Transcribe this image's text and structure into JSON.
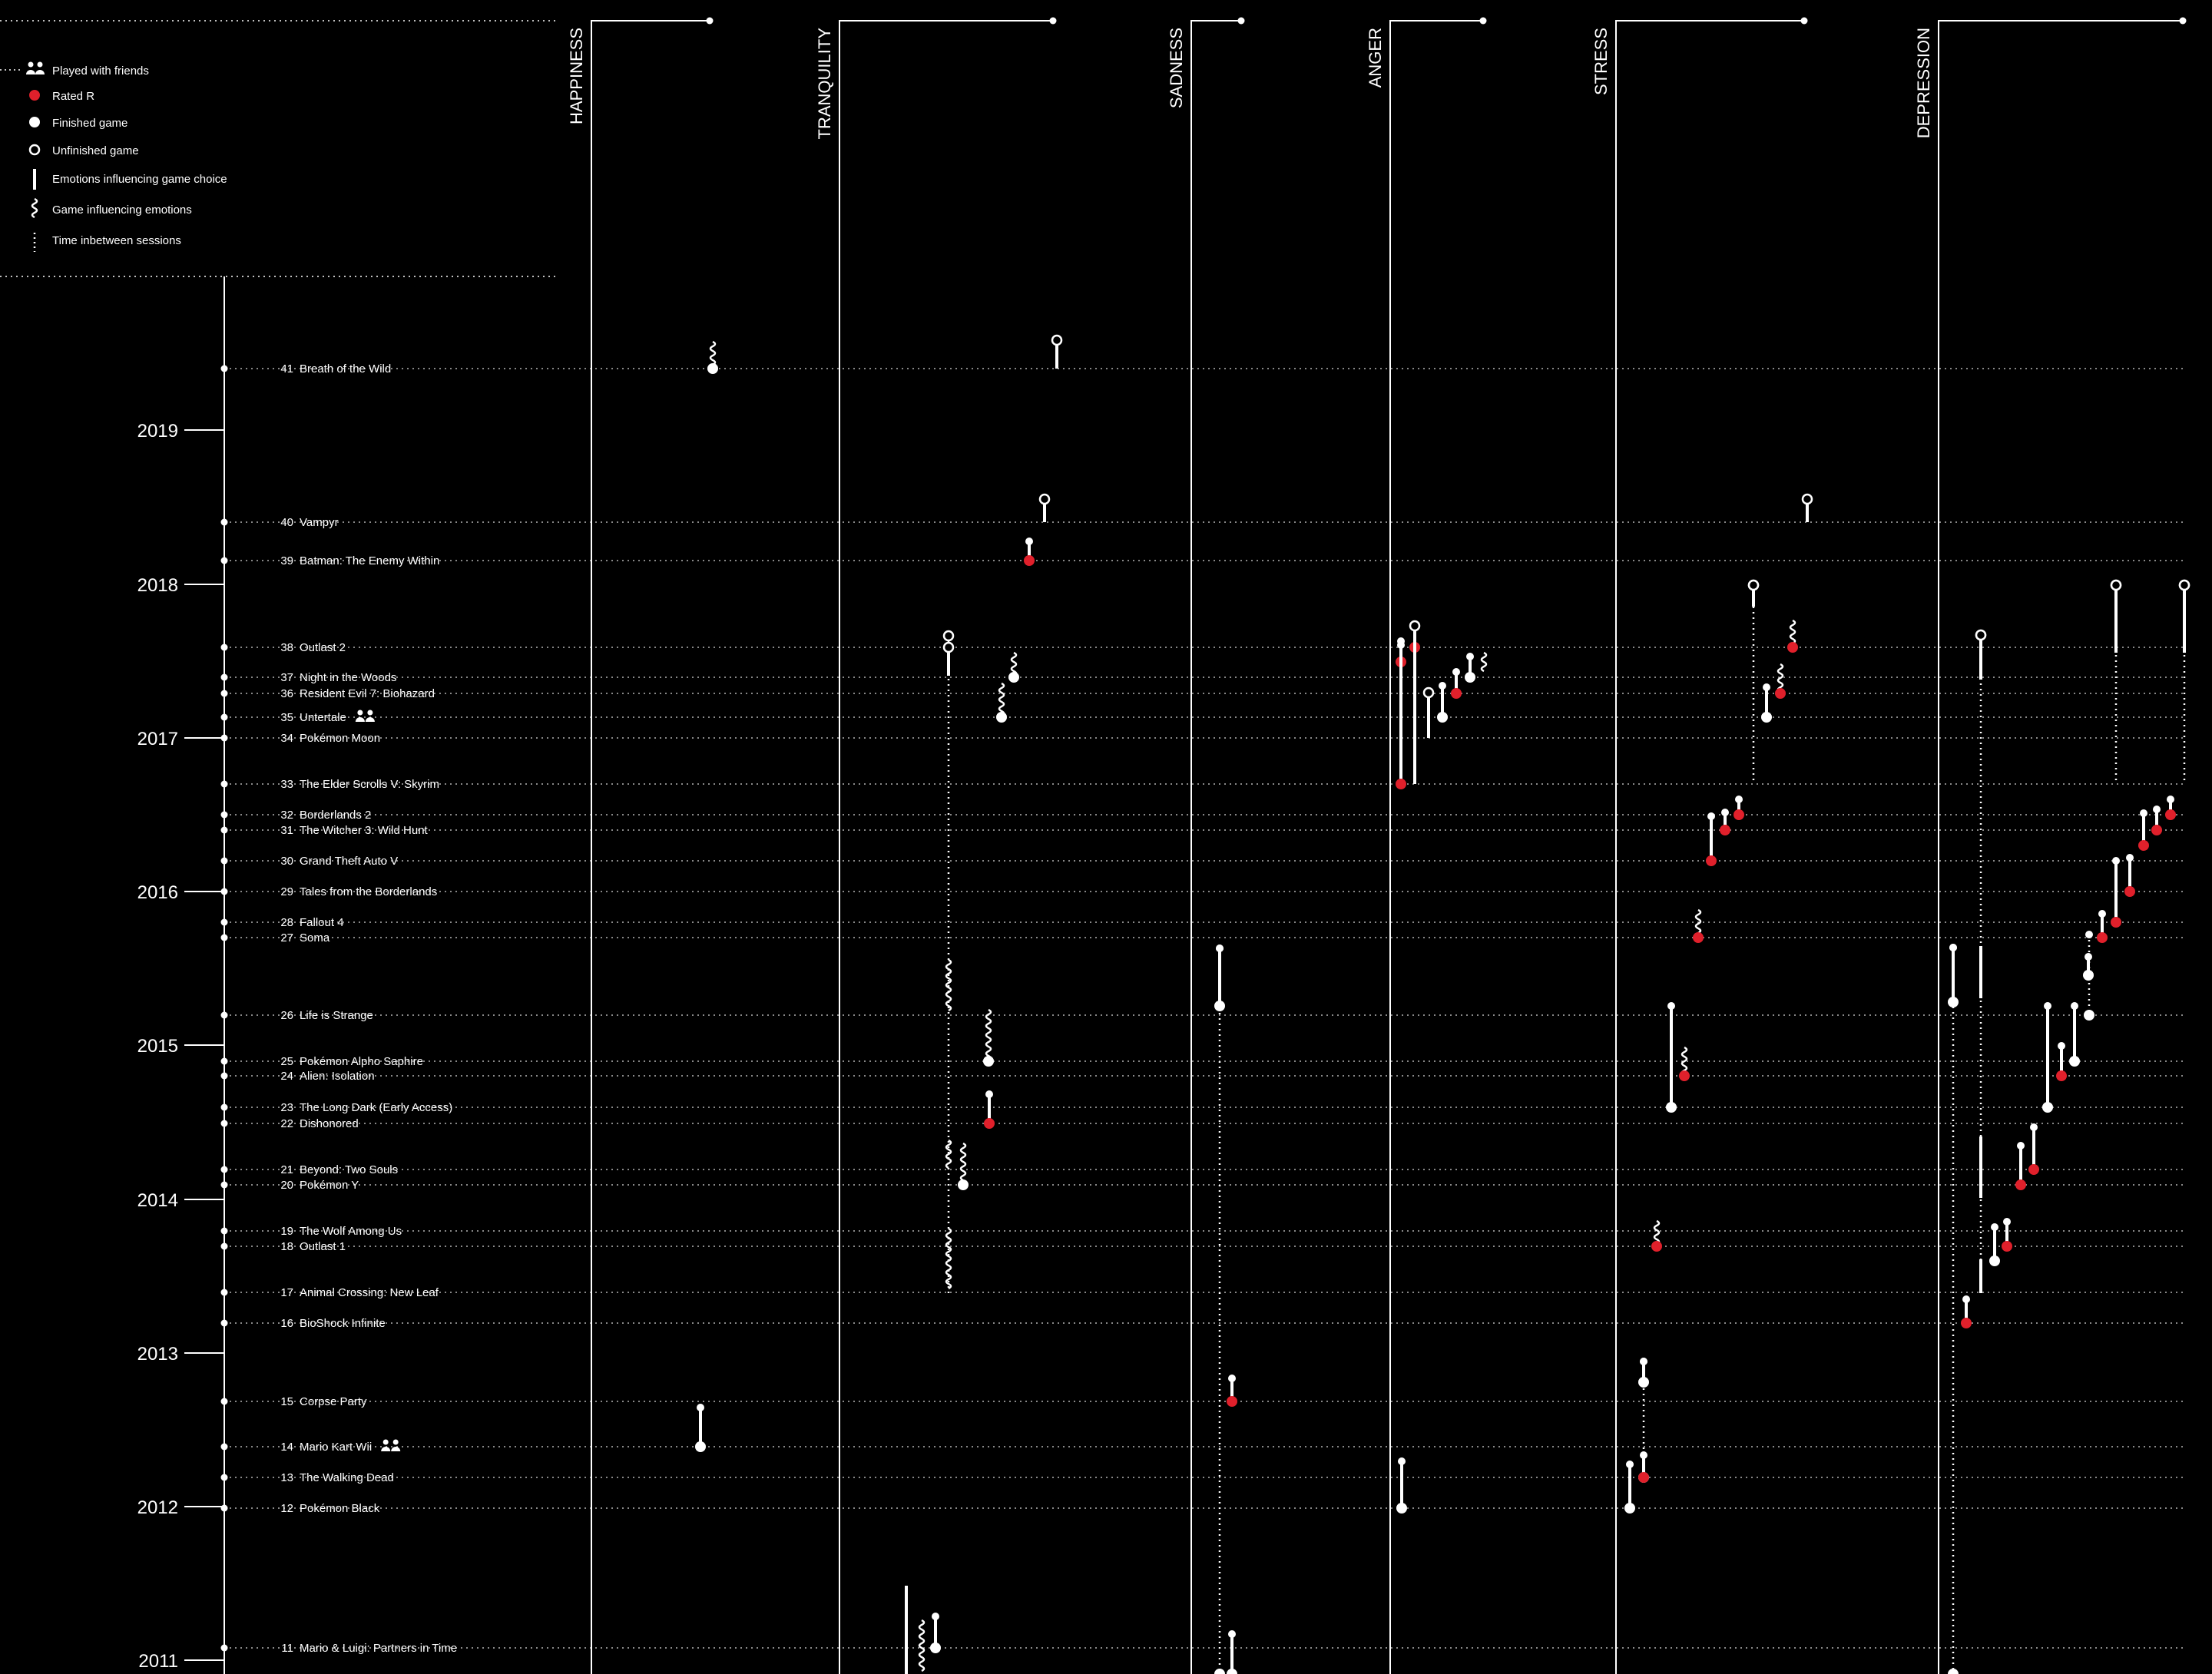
{
  "colors": {
    "background": "#000000",
    "ink": "#ffffff",
    "rated_r": "#e0202b"
  },
  "legend": [
    {
      "icon": "friends-icon",
      "label": "Played with friends"
    },
    {
      "icon": "rated-r-dot-icon",
      "label": "Rated R"
    },
    {
      "icon": "finished-dot-icon",
      "label": "Finished game"
    },
    {
      "icon": "unfinished-ring-icon",
      "label": "Unfinished game"
    },
    {
      "icon": "straight-stem-icon",
      "label": "Emotions influencing game choice"
    },
    {
      "icon": "squiggle-stem-icon",
      "label": "Game influencing emotions"
    },
    {
      "icon": "dotted-stem-icon",
      "label": "Time inbetween sessions"
    }
  ],
  "emotions": [
    "HAPPINESS",
    "TRANQUILITY",
    "SADNESS",
    "ANGER",
    "STRESS",
    "DEPRESSION"
  ],
  "years": [
    "2019",
    "2018",
    "2017",
    "2016",
    "2015",
    "2014",
    "2013",
    "2012",
    "2011"
  ],
  "games": [
    {
      "num": "41",
      "title": "Breath of the Wild"
    },
    {
      "num": "40",
      "title": "Vampyr"
    },
    {
      "num": "39",
      "title": "Batman: The Enemy Within"
    },
    {
      "num": "38",
      "title": "Outlast 2"
    },
    {
      "num": "37",
      "title": "Night in the Woods"
    },
    {
      "num": "36",
      "title": "Resident Evil 7: Biohazard"
    },
    {
      "num": "35",
      "title": "Untertale",
      "friends": true
    },
    {
      "num": "34",
      "title": "Pokémon Moon"
    },
    {
      "num": "33",
      "title": "The Elder Scrolls V: Skyrim"
    },
    {
      "num": "32",
      "title": "Borderlands 2"
    },
    {
      "num": "31",
      "title": "The Witcher 3: Wild Hunt"
    },
    {
      "num": "30",
      "title": "Grand Theft Auto V"
    },
    {
      "num": "29",
      "title": "Tales from the Borderlands"
    },
    {
      "num": "28",
      "title": "Fallout 4"
    },
    {
      "num": "27",
      "title": "Soma"
    },
    {
      "num": "26",
      "title": "Life is Strange"
    },
    {
      "num": "25",
      "title": "Pokémon Alpho Saphire"
    },
    {
      "num": "24",
      "title": "Alien: Isolation"
    },
    {
      "num": "23",
      "title": "The Long Dark (Early Access)"
    },
    {
      "num": "22",
      "title": "Dishonored"
    },
    {
      "num": "21",
      "title": "Beyond: Two Souls"
    },
    {
      "num": "20",
      "title": "Pokémon Y"
    },
    {
      "num": "19",
      "title": "The Wolf Among Us"
    },
    {
      "num": "18",
      "title": "Outlast 1"
    },
    {
      "num": "17",
      "title": "Animal Crossing: New Leaf"
    },
    {
      "num": "16",
      "title": "BioShock Infinite"
    },
    {
      "num": "15",
      "title": "Corpse Party"
    },
    {
      "num": "14",
      "title": "Mario Kart Wii",
      "friends": true
    },
    {
      "num": "13",
      "title": "The Walking Dead"
    },
    {
      "num": "12",
      "title": "Pokémon Black"
    },
    {
      "num": "11",
      "title": "Mario & Luigi: Partners in Time"
    }
  ]
}
